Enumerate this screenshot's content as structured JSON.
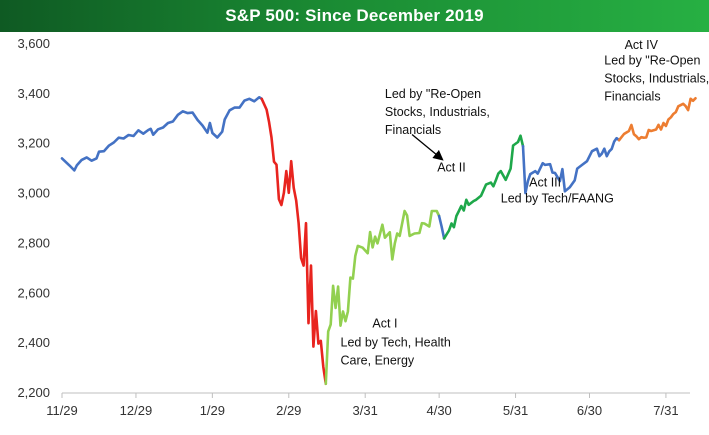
{
  "chart_data": {
    "type": "line",
    "title": "S&P 500: Since December 2019",
    "xlabel": "",
    "ylabel": "",
    "ylim": [
      2200,
      3600
    ],
    "grid": false,
    "legend": "none",
    "y_ticks": [
      "2,200",
      "2,400",
      "2,600",
      "2,800",
      "3,000",
      "3,200",
      "3,400",
      "3,600"
    ],
    "x_ticks": [
      "11/29",
      "12/29",
      "1/29",
      "2/29",
      "3/31",
      "4/30",
      "5/31",
      "6/30",
      "7/31"
    ],
    "x_tick_values": [
      0,
      30,
      61,
      92,
      123,
      153,
      184,
      214,
      245
    ],
    "series": [
      {
        "color": "#4472c4",
        "points": [
          [
            0,
            3141
          ],
          [
            3,
            3113
          ],
          [
            5,
            3093
          ],
          [
            6,
            3113
          ],
          [
            8,
            3135
          ],
          [
            10,
            3145
          ],
          [
            12,
            3132
          ],
          [
            14,
            3141
          ],
          [
            15,
            3168
          ],
          [
            17,
            3170
          ],
          [
            19,
            3192
          ],
          [
            21,
            3205
          ],
          [
            23,
            3224
          ],
          [
            25,
            3221
          ],
          [
            27,
            3235
          ],
          [
            29,
            3231
          ],
          [
            31,
            3254
          ],
          [
            33,
            3240
          ],
          [
            35,
            3255
          ],
          [
            36,
            3260
          ],
          [
            37,
            3236
          ],
          [
            39,
            3258
          ],
          [
            41,
            3265
          ],
          [
            43,
            3283
          ],
          [
            45,
            3289
          ],
          [
            47,
            3316
          ],
          [
            49,
            3330
          ],
          [
            51,
            3323
          ],
          [
            53,
            3325
          ],
          [
            55,
            3295
          ],
          [
            57,
            3273
          ],
          [
            59,
            3244
          ],
          [
            60,
            3283
          ],
          [
            61,
            3243
          ],
          [
            63,
            3225
          ],
          [
            65,
            3248
          ],
          [
            66,
            3297
          ],
          [
            68,
            3334
          ],
          [
            70,
            3345
          ],
          [
            72,
            3345
          ],
          [
            74,
            3373
          ],
          [
            76,
            3380
          ],
          [
            78,
            3370
          ],
          [
            80,
            3386
          ],
          [
            81,
            3380
          ]
        ]
      },
      {
        "color": "#e8241f",
        "points": [
          [
            81,
            3380
          ],
          [
            83,
            3337
          ],
          [
            84,
            3286
          ],
          [
            85,
            3225
          ],
          [
            86,
            3128
          ],
          [
            87,
            3116
          ],
          [
            88,
            2978
          ],
          [
            89,
            2954
          ],
          [
            90,
            3003
          ],
          [
            91,
            3090
          ],
          [
            92,
            3003
          ],
          [
            93,
            3130
          ],
          [
            94,
            3023
          ],
          [
            95,
            2972
          ],
          [
            96,
            2882
          ],
          [
            97,
            2741
          ],
          [
            98,
            2711
          ],
          [
            99,
            2881
          ],
          [
            100,
            2480
          ],
          [
            101,
            2711
          ],
          [
            102,
            2386
          ],
          [
            103,
            2529
          ],
          [
            104,
            2398
          ],
          [
            105,
            2409
          ],
          [
            106,
            2305
          ],
          [
            107,
            2237
          ]
        ]
      },
      {
        "color": "#92d050",
        "points": [
          [
            107,
            2237
          ],
          [
            108,
            2447
          ],
          [
            109,
            2475
          ],
          [
            110,
            2630
          ],
          [
            111,
            2541
          ],
          [
            112,
            2627
          ],
          [
            113,
            2470
          ],
          [
            114,
            2527
          ],
          [
            115,
            2488
          ],
          [
            116,
            2527
          ],
          [
            117,
            2663
          ],
          [
            118,
            2659
          ],
          [
            119,
            2750
          ],
          [
            120,
            2790
          ],
          [
            122,
            2783
          ],
          [
            124,
            2761
          ],
          [
            125,
            2846
          ],
          [
            126,
            2784
          ],
          [
            127,
            2827
          ],
          [
            128,
            2800
          ],
          [
            130,
            2875
          ],
          [
            131,
            2823
          ],
          [
            133,
            2845
          ],
          [
            134,
            2736
          ],
          [
            135,
            2800
          ],
          [
            136,
            2840
          ],
          [
            137,
            2830
          ],
          [
            139,
            2930
          ],
          [
            140,
            2912
          ],
          [
            141,
            2830
          ],
          [
            143,
            2840
          ],
          [
            145,
            2842
          ],
          [
            146,
            2881
          ],
          [
            147,
            2880
          ],
          [
            149,
            2868
          ],
          [
            150,
            2930
          ],
          [
            152,
            2930
          ],
          [
            153,
            2910
          ]
        ]
      },
      {
        "color": "#4472c4",
        "points": [
          [
            153,
            2910
          ],
          [
            154,
            2868
          ],
          [
            155,
            2820
          ]
        ]
      },
      {
        "color": "#1ea84a",
        "points": [
          [
            155,
            2820
          ],
          [
            157,
            2852
          ],
          [
            158,
            2880
          ],
          [
            159,
            2865
          ],
          [
            160,
            2910
          ],
          [
            161,
            2930
          ],
          [
            162,
            2950
          ],
          [
            163,
            2932
          ],
          [
            164,
            2975
          ],
          [
            165,
            2955
          ],
          [
            167,
            2970
          ],
          [
            168,
            2975
          ],
          [
            170,
            2991
          ],
          [
            172,
            3036
          ],
          [
            174,
            3044
          ],
          [
            175,
            3029
          ],
          [
            176,
            3053
          ],
          [
            177,
            3080
          ],
          [
            178,
            3090
          ],
          [
            180,
            3055
          ],
          [
            182,
            3100
          ],
          [
            183,
            3193
          ],
          [
            185,
            3207
          ],
          [
            186,
            3232
          ],
          [
            187,
            3190
          ]
        ]
      },
      {
        "color": "#4472c4",
        "points": [
          [
            187,
            3190
          ],
          [
            188,
            3002
          ],
          [
            189,
            3050
          ],
          [
            190,
            3078
          ],
          [
            192,
            3090
          ],
          [
            193,
            3080
          ],
          [
            195,
            3122
          ],
          [
            196,
            3115
          ],
          [
            198,
            3118
          ],
          [
            199,
            3084
          ],
          [
            200,
            3083
          ],
          [
            202,
            3050
          ],
          [
            203,
            3098
          ],
          [
            204,
            3009
          ],
          [
            206,
            3025
          ],
          [
            208,
            3053
          ],
          [
            209,
            3100
          ],
          [
            211,
            3115
          ],
          [
            213,
            3130
          ],
          [
            214,
            3150
          ],
          [
            215,
            3170
          ],
          [
            217,
            3180
          ],
          [
            218,
            3150
          ],
          [
            219,
            3160
          ],
          [
            220,
            3180
          ],
          [
            221,
            3150
          ],
          [
            222,
            3169
          ],
          [
            223,
            3179
          ],
          [
            224,
            3209
          ],
          [
            225,
            3222
          ],
          [
            226,
            3214
          ]
        ]
      },
      {
        "color": "#ed7d31",
        "points": [
          [
            226,
            3214
          ],
          [
            228,
            3239
          ],
          [
            230,
            3251
          ],
          [
            231,
            3275
          ],
          [
            232,
            3238
          ],
          [
            233,
            3230
          ],
          [
            234,
            3218
          ],
          [
            235,
            3226
          ],
          [
            236,
            3224
          ],
          [
            237,
            3225
          ],
          [
            238,
            3255
          ],
          [
            239,
            3251
          ],
          [
            241,
            3257
          ],
          [
            242,
            3276
          ],
          [
            243,
            3257
          ],
          [
            244,
            3283
          ],
          [
            245,
            3271
          ],
          [
            246,
            3297
          ],
          [
            247,
            3306
          ],
          [
            248,
            3319
          ],
          [
            249,
            3327
          ],
          [
            250,
            3350
          ],
          [
            252,
            3360
          ],
          [
            253,
            3351
          ],
          [
            254,
            3335
          ],
          [
            255,
            3380
          ],
          [
            256,
            3372
          ],
          [
            257,
            3382
          ]
        ]
      }
    ],
    "annotations": [
      {
        "lines": [
          "Act IV"
        ],
        "x": 235,
        "y": 3580,
        "anchor": "middle"
      },
      {
        "lines": [
          "Led by \"Re-Open",
          "Stocks, Industrials,",
          "Financials"
        ],
        "x": 220,
        "y": 3517,
        "anchor": "start"
      },
      {
        "lines": [
          "Led by \"Re-Open",
          "Stocks, Industrials,",
          "Financials"
        ],
        "x": 131,
        "y": 3383,
        "anchor": "start"
      },
      {
        "lines": [
          "Act II"
        ],
        "x": 158,
        "y": 3088,
        "anchor": "middle"
      },
      {
        "lines": [
          "Act III"
        ],
        "x": 196,
        "y": 3028,
        "anchor": "middle"
      },
      {
        "lines": [
          "Led by Tech/FAANG"
        ],
        "x": 178,
        "y": 2964,
        "anchor": "start"
      },
      {
        "lines": [
          "Act I"
        ],
        "x": 131,
        "y": 2462,
        "anchor": "middle"
      },
      {
        "lines": [
          "Led by Tech, Health",
          "Care, Energy"
        ],
        "x": 113,
        "y": 2387,
        "anchor": "start"
      }
    ],
    "arrow": {
      "from": [
        142,
        3237
      ],
      "to": [
        154,
        3139
      ],
      "color": "#000000"
    }
  }
}
